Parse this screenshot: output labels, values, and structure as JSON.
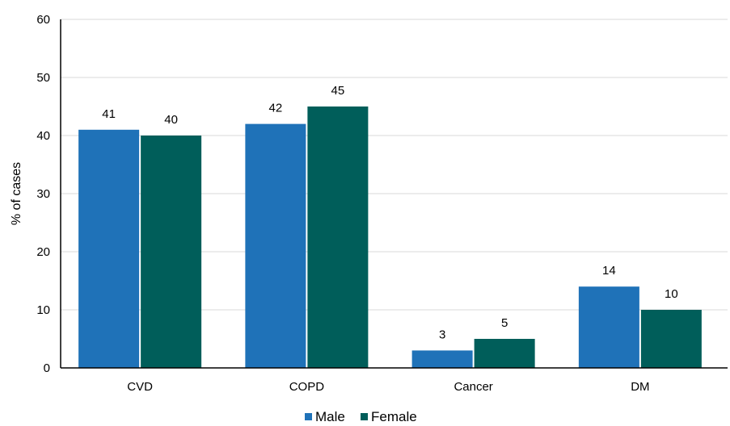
{
  "chart_data": {
    "type": "bar",
    "categories": [
      "CVD",
      "COPD",
      "Cancer",
      "DM"
    ],
    "series": [
      {
        "name": "Male",
        "values": [
          41,
          42,
          3,
          14
        ],
        "color": "#1f72b8"
      },
      {
        "name": "Female",
        "values": [
          40,
          45,
          5,
          10
        ],
        "color": "#005e5a"
      }
    ],
    "ylabel": "% of cases",
    "xlabel": "",
    "ylim": [
      0,
      60
    ],
    "yticks": [
      0,
      10,
      20,
      30,
      40,
      50,
      60
    ],
    "grid": true,
    "legend_position": "bottom-center",
    "data_labels": true
  }
}
